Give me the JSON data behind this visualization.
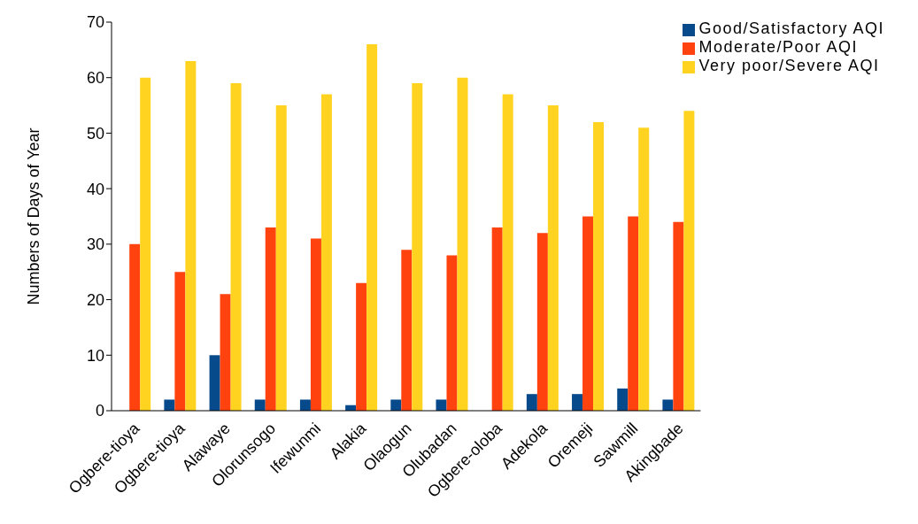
{
  "chart_data": {
    "type": "bar",
    "ylabel": "Numbers of Days of Year",
    "categories": [
      "Ogbere-tioya",
      "Ogbere-tioya",
      "Alawaye",
      "Olorunsogo",
      "Ifewunmi",
      "Alakia",
      "Olaogun",
      "Olubadan",
      "Ogbere-oloba",
      "Adekola",
      "Oremeji",
      "Sawmill",
      "Akingbade"
    ],
    "series": [
      {
        "name": "Good/Satisfactory AQI",
        "color": "#064a8c",
        "values": [
          0,
          2,
          10,
          2,
          2,
          1,
          2,
          2,
          0,
          3,
          3,
          4,
          2
        ]
      },
      {
        "name": "Moderate/Poor AQI",
        "color": "#ff420e",
        "values": [
          30,
          25,
          21,
          33,
          31,
          23,
          29,
          28,
          33,
          32,
          35,
          35,
          34
        ]
      },
      {
        "name": "Very poor/Severe AQI",
        "color": "#ffd320",
        "values": [
          60,
          63,
          59,
          55,
          57,
          66,
          59,
          60,
          57,
          55,
          52,
          51,
          54
        ]
      }
    ],
    "ylim": [
      0,
      70
    ],
    "yticks": [
      0,
      10,
      20,
      30,
      40,
      50,
      60,
      70
    ],
    "grid": false,
    "legend": "top right"
  }
}
